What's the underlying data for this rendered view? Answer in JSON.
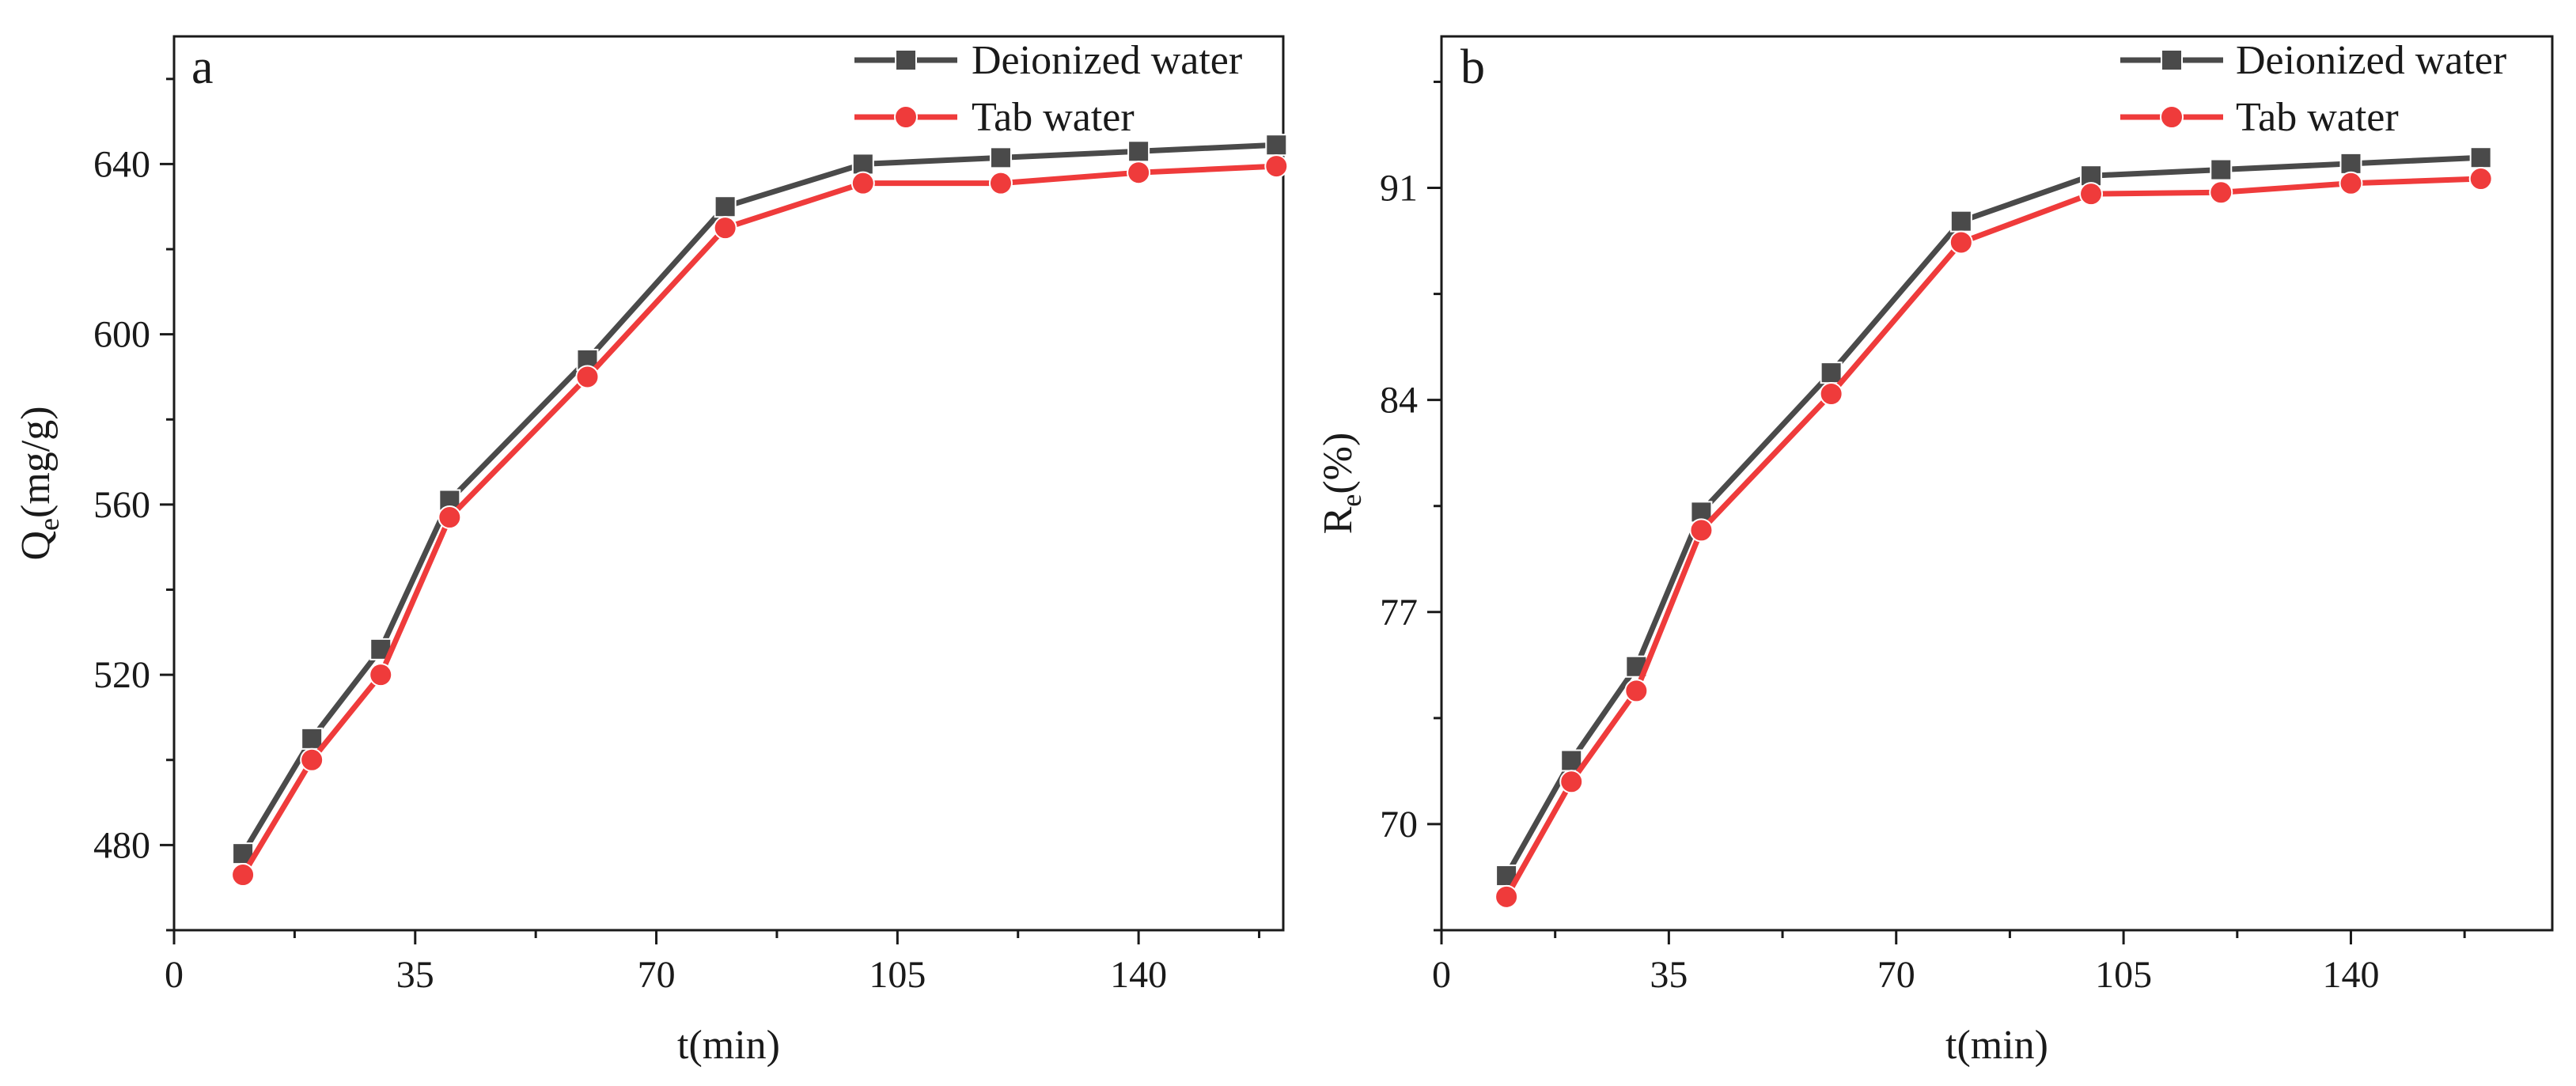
{
  "chart_data": [
    {
      "type": "line",
      "panel_label": "a",
      "xlabel": "t(min)",
      "ylabel": "Q",
      "ylabel_sub": "e",
      "ylabel_unit": "(mg/g)",
      "xlim": [
        0,
        161
      ],
      "ylim": [
        460,
        670
      ],
      "xticks": [
        0,
        35,
        70,
        105,
        140
      ],
      "yticks": [
        480,
        520,
        560,
        600,
        640
      ],
      "x": [
        10,
        20,
        30,
        40,
        60,
        80,
        100,
        120,
        140,
        160
      ],
      "series": [
        {
          "name": "Deionized water",
          "marker": "square",
          "color": "#4a4a4a",
          "values": [
            478,
            505,
            526,
            561,
            594,
            630,
            640,
            641.5,
            643,
            644.5
          ]
        },
        {
          "name": "Tab water",
          "marker": "circle",
          "color": "#ef3b3b",
          "values": [
            473,
            500,
            520,
            557,
            590,
            625,
            635.5,
            635.5,
            638,
            639.5
          ]
        }
      ]
    },
    {
      "type": "line",
      "panel_label": "b",
      "xlabel": "t(min)",
      "ylabel": "R",
      "ylabel_sub": "e",
      "ylabel_unit": "(%)",
      "xlim": [
        0,
        171
      ],
      "ylim": [
        66.5,
        96
      ],
      "xticks": [
        0,
        35,
        70,
        105,
        140
      ],
      "yticks": [
        70,
        77,
        84,
        91
      ],
      "x": [
        10,
        20,
        30,
        40,
        60,
        80,
        100,
        120,
        140,
        160
      ],
      "series": [
        {
          "name": "Deionized water",
          "marker": "square",
          "color": "#4a4a4a",
          "values": [
            68.3,
            72.1,
            75.2,
            80.3,
            84.9,
            89.9,
            91.4,
            91.6,
            91.8,
            92.0
          ]
        },
        {
          "name": "Tab water",
          "marker": "circle",
          "color": "#ef3b3b",
          "values": [
            67.6,
            71.4,
            74.4,
            79.7,
            84.2,
            89.2,
            90.8,
            90.85,
            91.15,
            91.3
          ]
        }
      ]
    }
  ]
}
